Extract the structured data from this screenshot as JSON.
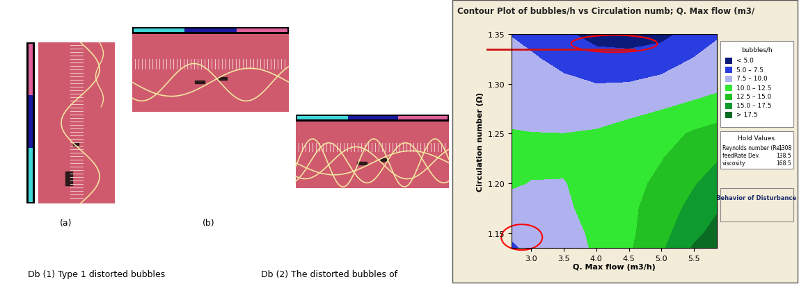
{
  "photo_labels": [
    "(a)",
    "(b)"
  ],
  "caption": [
    "Db (1) Type 1 distorted bubbles",
    "Db (2) The distorted bubbles of"
  ],
  "chart_data": {
    "type": "contour",
    "title": "Contour Plot of bubbles/h vs Circulation numb; Q. Max flow (m3/",
    "x_label": "Q. Max flow (m3/h)",
    "y_label": "Circulation number (Ω)",
    "x": [
      2.7,
      3.0,
      3.5,
      4.0,
      4.5,
      5.0,
      5.5,
      5.85
    ],
    "y": [
      1.135,
      1.15,
      1.175,
      1.2,
      1.225,
      1.25,
      1.275,
      1.3,
      1.325,
      1.35
    ],
    "z": [
      [
        7.0,
        8.2,
        9.3,
        10.2,
        12.2,
        14.6,
        17.8,
        19.5
      ],
      [
        8.0,
        8.6,
        9.2,
        10.4,
        12.0,
        14.2,
        16.8,
        18.4
      ],
      [
        9.0,
        9.2,
        9.6,
        10.8,
        12.0,
        13.6,
        15.8,
        17.2
      ],
      [
        10.3,
        9.9,
        9.9,
        10.8,
        11.8,
        13.0,
        14.8,
        16.0
      ],
      [
        11.2,
        10.6,
        10.4,
        10.6,
        11.4,
        12.4,
        13.8,
        14.8
      ],
      [
        10.2,
        10.05,
        10.0,
        10.2,
        10.8,
        11.6,
        12.8,
        13.6
      ],
      [
        9.0,
        9.0,
        8.9,
        9.0,
        9.4,
        9.9,
        10.6,
        11.0
      ],
      [
        8.6,
        8.4,
        8.0,
        7.5,
        7.6,
        8.2,
        8.8,
        9.4
      ],
      [
        8.2,
        7.8,
        6.8,
        5.8,
        5.8,
        6.3,
        7.6,
        8.4
      ],
      [
        7.4,
        6.8,
        5.4,
        4.2,
        3.8,
        4.3,
        6.0,
        7.2
      ]
    ],
    "levels": [
      5,
      7.5,
      10,
      12.5,
      15,
      17.5
    ],
    "legend_title": "bubbles/h",
    "level_labels": [
      "< 5.0",
      "5.0 – 7.5",
      "7.5 – 10.0",
      "10.0 – 12.5",
      "12.5 – 15.0",
      "15.0 – 17.5",
      "> 17.5"
    ],
    "colors": [
      "#0b1b7a",
      "#2a3de0",
      "#b0b2f0",
      "#33e833",
      "#22c022",
      "#0e9a2e",
      "#0a6b23"
    ],
    "xlim": [
      2.7,
      5.85
    ],
    "ylim": [
      1.135,
      1.35
    ],
    "xticks": [
      {
        "value": 3.0,
        "label": "3.0"
      },
      3.5,
      {
        "value": 4.0,
        "label": "4.0"
      },
      4.5,
      {
        "value": 5.0,
        "label": "5.0"
      },
      5.5
    ],
    "yticks": [
      1.15,
      {
        "value": 1.2,
        "label": "1.20"
      },
      1.25,
      {
        "value": 1.3,
        "label": "1.30"
      },
      1.35
    ],
    "hold_values": {
      "title": "Hold Values",
      "items": [
        {
          "name": "Reynolds number (Re)",
          "value": 1308
        },
        {
          "name": "feedRate Dev.",
          "value": 138.5
        },
        {
          "name": "viscosity",
          "value": 168.5
        }
      ]
    },
    "note": "Behavior of Disturbance"
  }
}
